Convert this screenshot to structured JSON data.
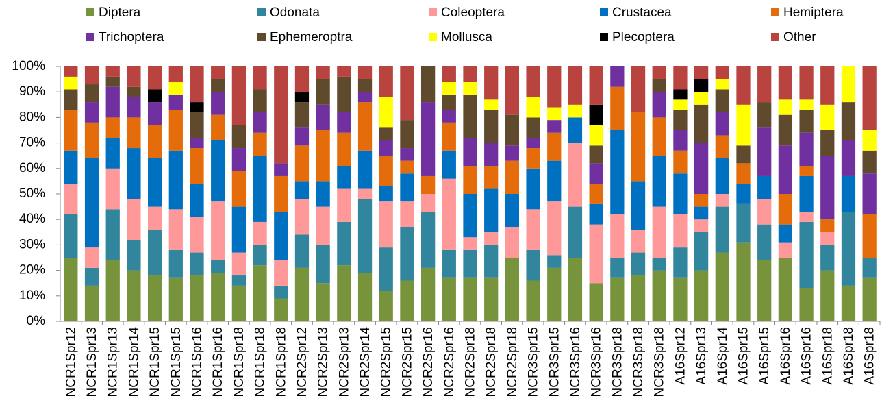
{
  "chart_data": {
    "type": "stacked_bar",
    "categories": [
      "NCR1Spr12",
      "NCR1Spr13",
      "NCR1Spr13",
      "NCR1Spr14",
      "NCR1Spr15",
      "NCR1Spr15",
      "NCR1Spr16",
      "NCR1Spr16",
      "NCR1Spr18",
      "NCR1Spr18",
      "NCR1Spr18",
      "NCR2Spr12",
      "NCR2Spr13",
      "NCR2Spr13",
      "NCR2Spr14",
      "NCR2Spr15",
      "NCR2Spr15",
      "NCR2Spr16",
      "NCR2Spr16",
      "NCR2Spr18",
      "NCR2Spr18",
      "NCR2Spr18",
      "NCR3Spr15",
      "NCR3Spr15",
      "NCR3Spr16",
      "NCR3Spr16",
      "NCR3Spr18",
      "NCR3Spr18",
      "NCR3Spr18",
      "A16Spr12",
      "A16Spr13",
      "A16Spr14",
      "A16Spr15",
      "A16Spr15",
      "A16Spr16",
      "A16Spr16",
      "A16Spr18",
      "A16Spr18",
      "A16Spr18"
    ],
    "series": [
      {
        "name": "Diptera",
        "color": "#77933c",
        "values": [
          25,
          14,
          24,
          20,
          18,
          17,
          18,
          19,
          14,
          22,
          9,
          21,
          15,
          22,
          19,
          12,
          16,
          21,
          17,
          17,
          17,
          25,
          16,
          21,
          25,
          15,
          17,
          18,
          20,
          17,
          20,
          27,
          31,
          24,
          25,
          13,
          20,
          14,
          17
        ]
      },
      {
        "name": "Odonata",
        "color": "#31859c",
        "values": [
          17,
          7,
          20,
          12,
          18,
          11,
          9,
          5,
          4,
          8,
          5,
          13,
          15,
          17,
          29,
          17,
          21,
          22,
          11,
          11,
          13,
          0,
          12,
          5,
          20,
          0,
          8,
          9,
          5,
          12,
          15,
          18,
          15,
          14,
          0,
          26,
          10,
          29,
          8
        ]
      },
      {
        "name": "Coleoptera",
        "color": "#ff9999",
        "values": [
          12,
          8,
          16,
          16,
          9,
          16,
          14,
          23,
          9,
          9,
          10,
          14,
          15,
          13,
          4,
          18,
          10,
          7,
          28,
          5,
          5,
          12,
          16,
          21,
          25,
          23,
          17,
          9,
          20,
          13,
          5,
          5,
          0,
          10,
          6,
          4,
          5,
          0,
          0
        ]
      },
      {
        "name": "Crustacea",
        "color": "#0070c0",
        "values": [
          13,
          35,
          12,
          20,
          19,
          23,
          13,
          24,
          18,
          26,
          19,
          7,
          10,
          9,
          15,
          6,
          11,
          0,
          11,
          17,
          17,
          13,
          16,
          16,
          10,
          8,
          33,
          19,
          20,
          16,
          5,
          14,
          8,
          9,
          7,
          14,
          0,
          14,
          0
        ]
      },
      {
        "name": "Hemiptera",
        "color": "#e46c0a",
        "values": [
          16,
          14,
          8,
          12,
          13,
          16,
          14,
          10,
          14,
          9,
          14,
          14,
          20,
          13,
          19,
          12,
          5,
          7,
          11,
          11,
          9,
          13,
          8,
          11,
          0,
          8,
          17,
          27,
          15,
          9,
          5,
          9,
          8,
          0,
          12,
          4,
          5,
          0,
          17
        ]
      },
      {
        "name": "Trichoptera",
        "color": "#7030a0",
        "values": [
          0,
          8,
          12,
          8,
          9,
          6,
          4,
          9,
          9,
          8,
          5,
          7,
          10,
          8,
          4,
          6,
          5,
          29,
          5,
          11,
          9,
          6,
          4,
          5,
          0,
          8,
          8,
          0,
          10,
          8,
          20,
          9,
          0,
          19,
          19,
          13,
          25,
          14,
          16
        ]
      },
      {
        "name": "Ephemeroptra",
        "color": "#604a2e",
        "values": [
          8,
          7,
          4,
          4,
          0,
          0,
          10,
          5,
          9,
          9,
          0,
          10,
          10,
          14,
          5,
          5,
          11,
          14,
          6,
          17,
          13,
          12,
          8,
          0,
          0,
          7,
          0,
          0,
          5,
          8,
          15,
          9,
          7,
          10,
          12,
          9,
          10,
          15,
          9
        ]
      },
      {
        "name": "Mollusca",
        "color": "#ffff00",
        "values": [
          5,
          0,
          0,
          0,
          0,
          5,
          0,
          0,
          0,
          0,
          0,
          0,
          0,
          0,
          0,
          12,
          0,
          0,
          5,
          5,
          4,
          0,
          8,
          5,
          5,
          8,
          0,
          0,
          0,
          4,
          5,
          4,
          16,
          0,
          6,
          4,
          10,
          14,
          8
        ]
      },
      {
        "name": "Plecoptera",
        "color": "#000000",
        "values": [
          0,
          0,
          0,
          0,
          5,
          0,
          4,
          0,
          0,
          0,
          0,
          4,
          0,
          0,
          0,
          0,
          0,
          0,
          0,
          0,
          0,
          0,
          0,
          0,
          0,
          8,
          0,
          0,
          0,
          4,
          5,
          0,
          0,
          0,
          0,
          0,
          0,
          0,
          0
        ]
      },
      {
        "name": "Other",
        "color": "#b9443f",
        "values": [
          4,
          7,
          4,
          8,
          9,
          6,
          14,
          5,
          23,
          9,
          38,
          10,
          5,
          4,
          5,
          12,
          21,
          0,
          6,
          6,
          13,
          19,
          12,
          16,
          15,
          15,
          0,
          18,
          5,
          9,
          5,
          5,
          15,
          14,
          13,
          13,
          15,
          0,
          25
        ]
      }
    ],
    "ylim": [
      0,
      100
    ],
    "yticks": [
      {
        "value": 0,
        "label": "0%"
      },
      {
        "value": 10,
        "label": "10%"
      },
      {
        "value": 20,
        "label": "20%"
      },
      {
        "value": 30,
        "label": "30%"
      },
      {
        "value": 40,
        "label": "40%"
      },
      {
        "value": 50,
        "label": "50%"
      },
      {
        "value": 60,
        "label": "60%"
      },
      {
        "value": 70,
        "label": "70%"
      },
      {
        "value": 80,
        "label": "80%"
      },
      {
        "value": 90,
        "label": "90%"
      },
      {
        "value": 100,
        "label": "100%"
      }
    ],
    "grid": false,
    "legend": "top"
  }
}
